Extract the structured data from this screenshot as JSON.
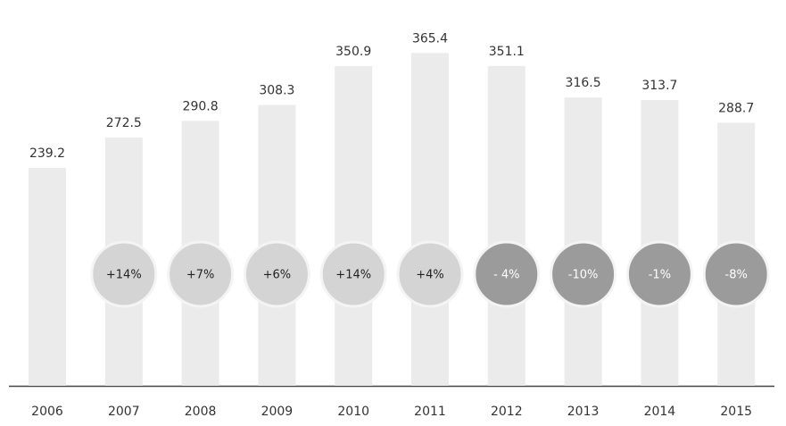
{
  "chart_data": {
    "type": "bar",
    "categories": [
      "2006",
      "2007",
      "2008",
      "2009",
      "2010",
      "2011",
      "2012",
      "2013",
      "2014",
      "2015"
    ],
    "values": [
      239.2,
      272.5,
      290.8,
      308.3,
      350.9,
      365.4,
      351.1,
      316.5,
      313.7,
      288.7
    ],
    "color": "#ebebeb",
    "changes": [
      null,
      14,
      7,
      6,
      14,
      4,
      -4,
      -10,
      -1,
      -8
    ],
    "change_labels": [
      null,
      "+14%",
      "+7%",
      "+6%",
      "+14%",
      "+4%",
      "- 4%",
      "-10%",
      "-1%",
      "-8%"
    ],
    "change_colors": {
      "up": "#d4d4d4",
      "down": "#9b9b9b"
    }
  }
}
